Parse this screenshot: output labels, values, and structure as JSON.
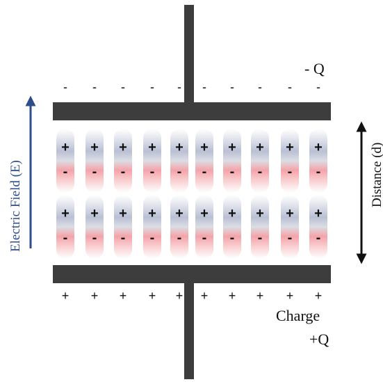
{
  "labels": {
    "top_charge": "- Q",
    "bottom_charge_line1": "Charge",
    "bottom_charge_line2": "+Q",
    "electric_field": "Electric Field (E)",
    "distance": "Distance (d)"
  },
  "symbols": {
    "negative": "-",
    "positive": "+"
  },
  "plate_charges": {
    "top_count": 10,
    "bottom_count": 10
  },
  "dielectric": {
    "rows": 2,
    "columns": 10,
    "top_sign": "+",
    "bottom_sign": "-"
  },
  "colors": {
    "plate": "#3d3d3d",
    "field_arrow": "#2e4d8a",
    "distance_arrow": "#111111",
    "dipole_positive": "#b9c0d4",
    "dipole_negative": "#f4a3a8"
  }
}
